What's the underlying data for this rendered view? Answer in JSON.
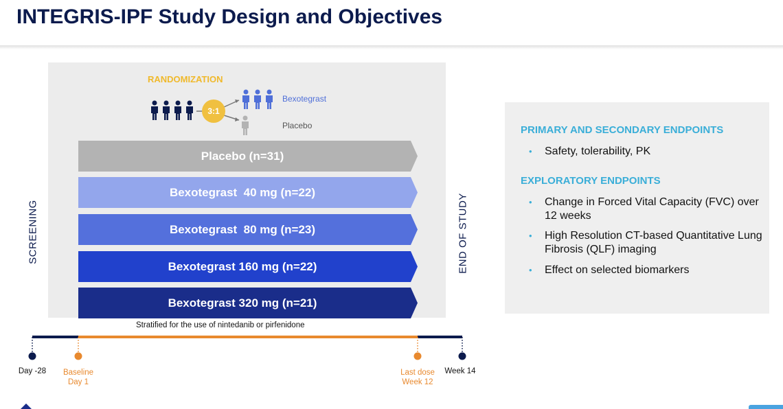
{
  "header": {
    "title": "INTEGRIS-IPF Study Design and Objectives"
  },
  "randomization": {
    "label": "RANDOMIZATION",
    "ratio": "3:1",
    "arm_active": "Bexotegrast",
    "arm_placebo": "Placebo",
    "colors": {
      "label": "#f0b92b",
      "active": "#4f6fd8",
      "placebo": "#666666"
    }
  },
  "side_labels": {
    "screening": "SCREENING",
    "end_of_study": "END OF STUDY"
  },
  "arms": [
    {
      "label": "Placebo (n=31)",
      "color": "#b3b3b3"
    },
    {
      "label": "Bexotegrast  40 mg (n=22)",
      "color": "#93a6ec"
    },
    {
      "label": "Bexotegrast  80 mg (n=23)",
      "color": "#5470dc"
    },
    {
      "label": "Bexotegrast 160 mg (n=22)",
      "color": "#2141cc"
    },
    {
      "label": "Bexotegrast 320 mg (n=21)",
      "color": "#1a2d8a"
    }
  ],
  "stratification": "Stratified for the use of nintedanib or pirfenidone",
  "timeline": {
    "points": [
      {
        "line1": "Day -28",
        "line2": "",
        "color": "#0c1b4d"
      },
      {
        "line1": "Baseline",
        "line2": "Day 1",
        "color": "#e8892e"
      },
      {
        "line1": "Last dose",
        "line2": "Week 12",
        "color": "#e8892e"
      },
      {
        "line1": "Week 14",
        "line2": "",
        "color": "#0c1b4d"
      }
    ]
  },
  "endpoints": {
    "primary_heading": "PRIMARY AND SECONDARY ENDPOINTS",
    "primary_items": [
      "Safety, tolerability, PK"
    ],
    "exploratory_heading": "EXPLORATORY ENDPOINTS",
    "exploratory_items": [
      "Change in Forced Vital Capacity (FVC) over 12 weeks",
      "High Resolution CT-based Quantitative Lung Fibrosis (QLF) imaging",
      "Effect on selected biomarkers"
    ],
    "bullet_glyph": "•"
  }
}
